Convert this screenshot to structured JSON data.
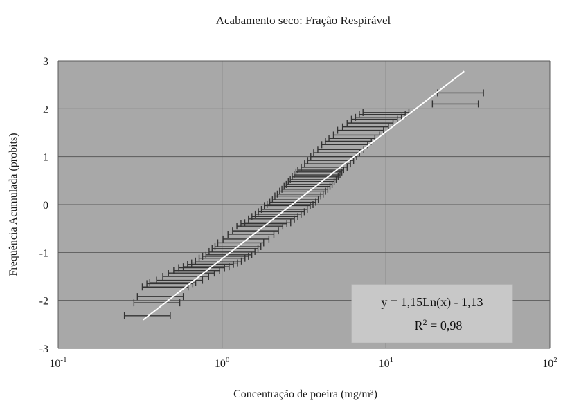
{
  "chart_data": {
    "type": "scatter",
    "title": "Acabamento seco: Fração Respirável",
    "xlabel": "Concentração de poeira (mg/m³)",
    "ylabel": "Freqüência Acumulada (probits)",
    "x_scale": "log",
    "xlim": [
      0.1,
      100
    ],
    "ylim": [
      -3,
      3
    ],
    "x_ticks": [
      {
        "value": 0.1,
        "base": "10",
        "exp": "-1"
      },
      {
        "value": 1,
        "base": "10",
        "exp": "0"
      },
      {
        "value": 10,
        "base": "10",
        "exp": "1"
      },
      {
        "value": 100,
        "base": "10",
        "exp": "2"
      }
    ],
    "y_ticks": [
      "3",
      "2",
      "1",
      "0",
      "-1",
      "-2",
      "-3"
    ],
    "y_tick_values": [
      3,
      2,
      1,
      0,
      -1,
      -2,
      -3
    ],
    "grid": true,
    "colors": {
      "plot_background": "#a8a8a8",
      "points": "#333333",
      "fit_line": "#ffffff",
      "grid": "#5a5a5a"
    },
    "series": [
      {
        "x": [
          0.35,
          0.4,
          0.42,
          0.45,
          0.48,
          0.5,
          0.55,
          0.6,
          0.65,
          0.7,
          0.75,
          0.8,
          0.85,
          0.9,
          0.95,
          1.0,
          1.05,
          1.1,
          1.15,
          1.2,
          1.25,
          1.3,
          1.4,
          1.5,
          1.6,
          1.7,
          1.8,
          1.9,
          2.0,
          2.1,
          2.2,
          2.3,
          2.4,
          2.5,
          2.6,
          2.7,
          2.8,
          2.9,
          3.0,
          3.1,
          3.2,
          3.3,
          3.4,
          3.5,
          3.6,
          3.7,
          3.8,
          3.9,
          4.0,
          4.2,
          4.4,
          4.6,
          4.8,
          5.0,
          5.3,
          5.6,
          5.9,
          6.2,
          6.6,
          7.0,
          7.5,
          8.0,
          8.5,
          9.0,
          9.5,
          10.0,
          26.5,
          28.5
        ],
        "y": [
          -2.32,
          -2.05,
          -1.92,
          -1.72,
          -1.65,
          -1.63,
          -1.58,
          -1.5,
          -1.43,
          -1.38,
          -1.32,
          -1.3,
          -1.25,
          -1.22,
          -1.18,
          -1.12,
          -1.08,
          -1.05,
          -0.98,
          -0.92,
          -0.88,
          -0.8,
          -0.72,
          -0.62,
          -0.55,
          -0.45,
          -0.4,
          -0.38,
          -0.3,
          -0.25,
          -0.2,
          -0.15,
          -0.1,
          -0.02,
          0.0,
          0.05,
          0.1,
          0.18,
          0.22,
          0.28,
          0.32,
          0.38,
          0.42,
          0.48,
          0.52,
          0.58,
          0.62,
          0.68,
          0.72,
          0.78,
          0.85,
          0.92,
          1.0,
          1.08,
          1.15,
          1.25,
          1.32,
          1.38,
          1.45,
          1.55,
          1.62,
          1.7,
          1.78,
          1.82,
          1.88,
          1.92,
          2.1,
          2.33
        ],
        "x_err": 0.14
      }
    ],
    "fit": {
      "slope": 1.15,
      "intercept": -1.13,
      "x_range": [
        0.33,
        30
      ],
      "equation_label": "y = 1,15Ln(x) - 1,13",
      "r2_label_base": "R",
      "r2_label_exp": "2",
      "r2_label_value": " = 0,98"
    }
  }
}
